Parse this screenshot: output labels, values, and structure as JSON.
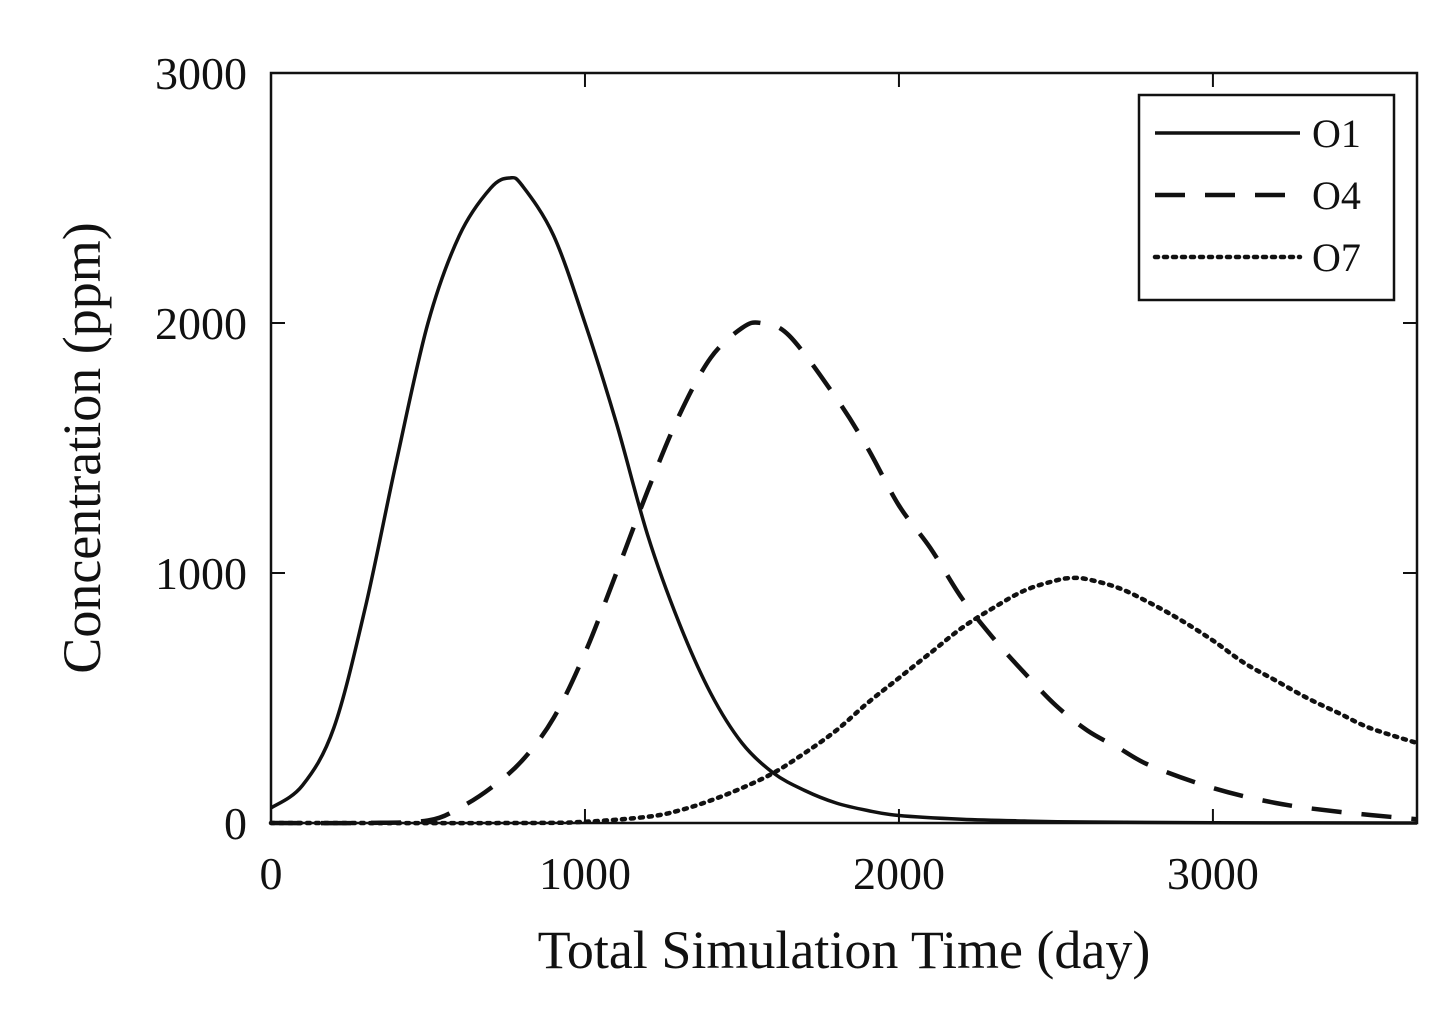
{
  "chart_data": {
    "type": "line",
    "title": "",
    "xlabel": "Total Simulation Time (day)",
    "ylabel": "Concentration (ppm)",
    "xlim": [
      0,
      3650
    ],
    "ylim": [
      0,
      3000
    ],
    "x_ticks": [
      0,
      1000,
      2000,
      3000
    ],
    "y_ticks": [
      0,
      1000,
      2000,
      3000
    ],
    "x_tick_labels": [
      "0",
      "1000",
      "2000",
      "3000"
    ],
    "y_tick_labels": [
      "0",
      "1000",
      "2000",
      "3000"
    ],
    "grid": false,
    "legend_position": "top-right",
    "series": [
      {
        "name": "O1",
        "style": "solid",
        "x": [
          0,
          100,
          200,
          300,
          400,
          500,
          600,
          700,
          760,
          800,
          900,
          1000,
          1100,
          1200,
          1300,
          1400,
          1500,
          1600,
          1700,
          1800,
          1900,
          2000,
          2200,
          2400,
          2600,
          3000,
          3650
        ],
        "values": [
          60,
          150,
          380,
          860,
          1450,
          2000,
          2350,
          2540,
          2580,
          2550,
          2350,
          2000,
          1600,
          1150,
          800,
          520,
          320,
          200,
          130,
          80,
          50,
          30,
          15,
          8,
          4,
          1,
          0
        ]
      },
      {
        "name": "O4",
        "style": "dashed",
        "x": [
          0,
          300,
          500,
          600,
          700,
          800,
          900,
          1000,
          1100,
          1200,
          1300,
          1400,
          1500,
          1560,
          1650,
          1800,
          1900,
          2000,
          2100,
          2200,
          2300,
          2400,
          2500,
          2600,
          2700,
          2800,
          3000,
          3200,
          3400,
          3650
        ],
        "values": [
          0,
          0,
          10,
          60,
          140,
          250,
          420,
          680,
          1000,
          1330,
          1630,
          1860,
          1980,
          2000,
          1950,
          1700,
          1500,
          1270,
          1100,
          900,
          740,
          600,
          470,
          370,
          300,
          230,
          140,
          80,
          45,
          15
        ]
      },
      {
        "name": "O7",
        "style": "dotted",
        "x": [
          0,
          800,
          1000,
          1200,
          1300,
          1400,
          1500,
          1600,
          1700,
          1800,
          1900,
          2000,
          2100,
          2200,
          2300,
          2400,
          2500,
          2550,
          2600,
          2700,
          2800,
          2900,
          3000,
          3100,
          3200,
          3300,
          3400,
          3500,
          3650
        ],
        "values": [
          0,
          0,
          5,
          25,
          50,
          90,
          140,
          200,
          280,
          370,
          480,
          580,
          680,
          780,
          860,
          930,
          970,
          980,
          975,
          940,
          880,
          810,
          730,
          640,
          570,
          500,
          440,
          380,
          320
        ]
      }
    ]
  }
}
